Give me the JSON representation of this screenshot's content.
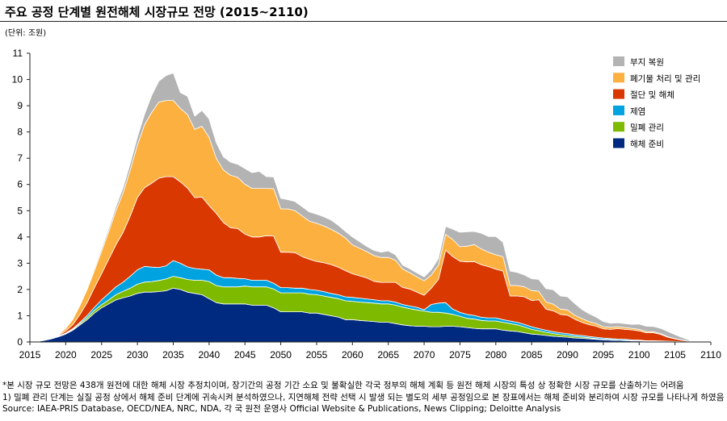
{
  "header": {
    "title": "주요 공정 단계별 원전해체 시장규모 전망 (2015~2110)",
    "unit": "(단위: 조원)"
  },
  "notes": [
    "*본 시장 규모 전망은 438개 원전에 대한 해체 시장 추정치이며, 장기간의 공정 기간 소요 및 불확실한 각국 정부의 해체 계획 등 원전 해체 시장의 특성 상 정확한 시장 규모를 산출하기는 어려움",
    "1) 밀폐 관리 단계는 실질 공정 상에서 해체 준비 단계에 귀속시켜 분석하였으나, 지연해체 전략 선택 시 발생 되는 별도의  세부 공정임으로 본 장표에서는 해체 준비와 분리하여 시장 규모를 나타나게 하였음",
    "Source: IAEA-PRIS Database, OECD/NEA, NRC, NDA, 각 국 원전 운영사 Official Website & Publications, News Clipping; Deloitte Analysis"
  ],
  "chart_data": {
    "type": "area",
    "stacked": true,
    "title": "주요 공정 단계별 원전해체 시장규모 전망 (2015~2110)",
    "ylabel": "(단위: 조원)",
    "xlabel": "",
    "xlim": [
      2015,
      2110
    ],
    "ylim": [
      0,
      11
    ],
    "x_ticks": [
      2015,
      2020,
      2025,
      2030,
      2035,
      2040,
      2045,
      2050,
      2055,
      2060,
      2065,
      2070,
      2075,
      2080,
      2085,
      2090,
      2095,
      2100,
      2105,
      2110
    ],
    "y_ticks": [
      0,
      1,
      2,
      3,
      4,
      5,
      6,
      7,
      8,
      9,
      10,
      11
    ],
    "legend_position": "top-right",
    "x": [
      2016,
      2017,
      2018,
      2019,
      2020,
      2021,
      2022,
      2023,
      2024,
      2025,
      2026,
      2027,
      2028,
      2029,
      2030,
      2031,
      2032,
      2033,
      2034,
      2035,
      2036,
      2037,
      2038,
      2039,
      2040,
      2041,
      2042,
      2043,
      2044,
      2045,
      2046,
      2047,
      2048,
      2049,
      2050,
      2051,
      2052,
      2053,
      2054,
      2055,
      2056,
      2057,
      2058,
      2059,
      2060,
      2061,
      2062,
      2063,
      2064,
      2065,
      2066,
      2067,
      2068,
      2069,
      2070,
      2071,
      2072,
      2073,
      2074,
      2075,
      2076,
      2077,
      2078,
      2079,
      2080,
      2081,
      2082,
      2083,
      2084,
      2085,
      2086,
      2087,
      2088,
      2089,
      2090,
      2091,
      2092,
      2093,
      2094,
      2095,
      2096,
      2097,
      2098,
      2099,
      2100,
      2101,
      2102,
      2103,
      2104,
      2105,
      2106,
      2107
    ],
    "series": [
      {
        "name": "해체 준비",
        "color": "#002A7F",
        "values": [
          0.02,
          0.06,
          0.12,
          0.2,
          0.3,
          0.45,
          0.65,
          0.85,
          1.1,
          1.3,
          1.45,
          1.6,
          1.68,
          1.75,
          1.85,
          1.9,
          1.9,
          1.92,
          1.95,
          2.05,
          2.0,
          1.9,
          1.85,
          1.8,
          1.65,
          1.5,
          1.45,
          1.45,
          1.45,
          1.45,
          1.4,
          1.4,
          1.4,
          1.3,
          1.15,
          1.15,
          1.15,
          1.15,
          1.1,
          1.1,
          1.05,
          1.0,
          0.95,
          0.85,
          0.85,
          0.82,
          0.8,
          0.78,
          0.75,
          0.75,
          0.7,
          0.65,
          0.62,
          0.6,
          0.6,
          0.58,
          0.58,
          0.6,
          0.6,
          0.58,
          0.55,
          0.52,
          0.5,
          0.5,
          0.5,
          0.45,
          0.42,
          0.4,
          0.35,
          0.3,
          0.28,
          0.25,
          0.22,
          0.2,
          0.18,
          0.15,
          0.14,
          0.12,
          0.1,
          0.08,
          0.07,
          0.06,
          0.05,
          0.04,
          0.04,
          0.03,
          0.03,
          0.02,
          0.02,
          0.01,
          0.01,
          0.0
        ]
      },
      {
        "name": "밀폐 관리",
        "color": "#7DBA00",
        "values": [
          0.0,
          0.0,
          0.0,
          0.01,
          0.02,
          0.03,
          0.05,
          0.08,
          0.1,
          0.12,
          0.15,
          0.2,
          0.25,
          0.3,
          0.35,
          0.38,
          0.4,
          0.42,
          0.45,
          0.45,
          0.45,
          0.48,
          0.5,
          0.55,
          0.65,
          0.65,
          0.65,
          0.65,
          0.65,
          0.68,
          0.7,
          0.7,
          0.7,
          0.72,
          0.72,
          0.72,
          0.72,
          0.72,
          0.72,
          0.7,
          0.7,
          0.7,
          0.7,
          0.72,
          0.7,
          0.7,
          0.7,
          0.7,
          0.7,
          0.7,
          0.7,
          0.68,
          0.65,
          0.62,
          0.58,
          0.55,
          0.55,
          0.5,
          0.45,
          0.4,
          0.35,
          0.35,
          0.32,
          0.3,
          0.3,
          0.3,
          0.28,
          0.25,
          0.22,
          0.18,
          0.15,
          0.12,
          0.1,
          0.08,
          0.07,
          0.06,
          0.05,
          0.04,
          0.03,
          0.02,
          0.02,
          0.01,
          0.01,
          0.01,
          0.0,
          0.0,
          0.0,
          0.0,
          0.0,
          0.0,
          0.0,
          0.0
        ]
      },
      {
        "name": "제염",
        "color": "#00A3E0",
        "values": [
          0.0,
          0.0,
          0.0,
          0.01,
          0.02,
          0.03,
          0.05,
          0.08,
          0.12,
          0.18,
          0.25,
          0.3,
          0.35,
          0.45,
          0.55,
          0.6,
          0.55,
          0.5,
          0.5,
          0.6,
          0.55,
          0.48,
          0.45,
          0.42,
          0.45,
          0.4,
          0.35,
          0.35,
          0.32,
          0.28,
          0.25,
          0.25,
          0.25,
          0.22,
          0.2,
          0.2,
          0.18,
          0.18,
          0.18,
          0.17,
          0.17,
          0.15,
          0.15,
          0.15,
          0.15,
          0.15,
          0.14,
          0.13,
          0.12,
          0.12,
          0.12,
          0.1,
          0.1,
          0.1,
          0.05,
          0.3,
          0.35,
          0.4,
          0.2,
          0.15,
          0.15,
          0.14,
          0.12,
          0.12,
          0.12,
          0.1,
          0.1,
          0.1,
          0.1,
          0.1,
          0.08,
          0.08,
          0.07,
          0.07,
          0.07,
          0.06,
          0.06,
          0.05,
          0.05,
          0.05,
          0.04,
          0.04,
          0.04,
          0.03,
          0.03,
          0.02,
          0.02,
          0.02,
          0.01,
          0.01,
          0.0,
          0.0
        ]
      },
      {
        "name": "절단 및 해체",
        "color": "#D93800",
        "values": [
          0.0,
          0.0,
          0.01,
          0.03,
          0.08,
          0.15,
          0.3,
          0.5,
          0.75,
          1.0,
          1.3,
          1.6,
          1.9,
          2.3,
          2.75,
          3.0,
          3.2,
          3.4,
          3.4,
          3.2,
          3.1,
          3.0,
          2.7,
          2.75,
          2.45,
          2.35,
          2.1,
          1.9,
          1.9,
          1.7,
          1.65,
          1.65,
          1.7,
          1.8,
          1.35,
          1.35,
          1.35,
          1.2,
          1.15,
          1.1,
          1.1,
          1.1,
          1.05,
          1.0,
          0.9,
          0.85,
          0.8,
          0.7,
          0.7,
          0.7,
          0.75,
          0.65,
          0.65,
          0.58,
          0.55,
          0.62,
          0.9,
          2.0,
          2.0,
          1.95,
          2.0,
          2.05,
          2.0,
          1.95,
          1.85,
          1.85,
          0.95,
          1.0,
          1.05,
          1.0,
          1.1,
          0.8,
          0.8,
          0.7,
          0.7,
          0.6,
          0.5,
          0.45,
          0.42,
          0.35,
          0.35,
          0.4,
          0.38,
          0.38,
          0.35,
          0.3,
          0.3,
          0.25,
          0.15,
          0.1,
          0.05,
          0.02
        ]
      },
      {
        "name": "폐기물 처리 및 관리",
        "color": "#FBB040",
        "values": [
          0.0,
          0.0,
          0.01,
          0.03,
          0.1,
          0.2,
          0.35,
          0.5,
          0.65,
          0.85,
          1.05,
          1.3,
          1.5,
          1.75,
          2.0,
          2.4,
          2.7,
          2.9,
          2.9,
          2.9,
          2.8,
          2.8,
          2.6,
          2.7,
          2.6,
          2.1,
          2.0,
          2.0,
          1.95,
          1.9,
          1.85,
          1.85,
          1.8,
          1.8,
          1.65,
          1.65,
          1.6,
          1.55,
          1.45,
          1.45,
          1.4,
          1.35,
          1.3,
          1.25,
          1.1,
          1.05,
          1.0,
          0.98,
          0.95,
          0.95,
          0.85,
          0.7,
          0.62,
          0.58,
          0.55,
          0.5,
          0.55,
          0.6,
          0.65,
          0.55,
          0.6,
          0.65,
          0.6,
          0.55,
          0.55,
          0.55,
          0.4,
          0.4,
          0.38,
          0.38,
          0.32,
          0.28,
          0.25,
          0.2,
          0.2,
          0.15,
          0.14,
          0.12,
          0.1,
          0.08,
          0.08,
          0.07,
          0.07,
          0.06,
          0.06,
          0.05,
          0.04,
          0.03,
          0.02,
          0.01,
          0.01,
          0.0
        ]
      },
      {
        "name": "부지 복원",
        "color": "#B3B3B3",
        "values": [
          0.0,
          0.0,
          0.0,
          0.0,
          0.01,
          0.02,
          0.03,
          0.05,
          0.08,
          0.1,
          0.12,
          0.15,
          0.2,
          0.25,
          0.3,
          0.4,
          0.65,
          0.8,
          0.95,
          1.05,
          0.6,
          0.7,
          0.5,
          0.6,
          0.7,
          0.6,
          0.5,
          0.5,
          0.5,
          0.6,
          0.6,
          0.65,
          0.45,
          0.45,
          0.4,
          0.35,
          0.35,
          0.35,
          0.35,
          0.35,
          0.35,
          0.35,
          0.3,
          0.25,
          0.3,
          0.25,
          0.2,
          0.2,
          0.2,
          0.25,
          0.2,
          0.15,
          0.15,
          0.15,
          0.15,
          0.2,
          0.25,
          0.3,
          0.4,
          0.55,
          0.55,
          0.5,
          0.6,
          0.6,
          0.7,
          0.55,
          0.55,
          0.5,
          0.45,
          0.45,
          0.45,
          0.5,
          0.55,
          0.5,
          0.5,
          0.45,
          0.35,
          0.3,
          0.25,
          0.2,
          0.15,
          0.15,
          0.15,
          0.15,
          0.2,
          0.2,
          0.2,
          0.2,
          0.2,
          0.15,
          0.1,
          0.05
        ]
      }
    ]
  }
}
